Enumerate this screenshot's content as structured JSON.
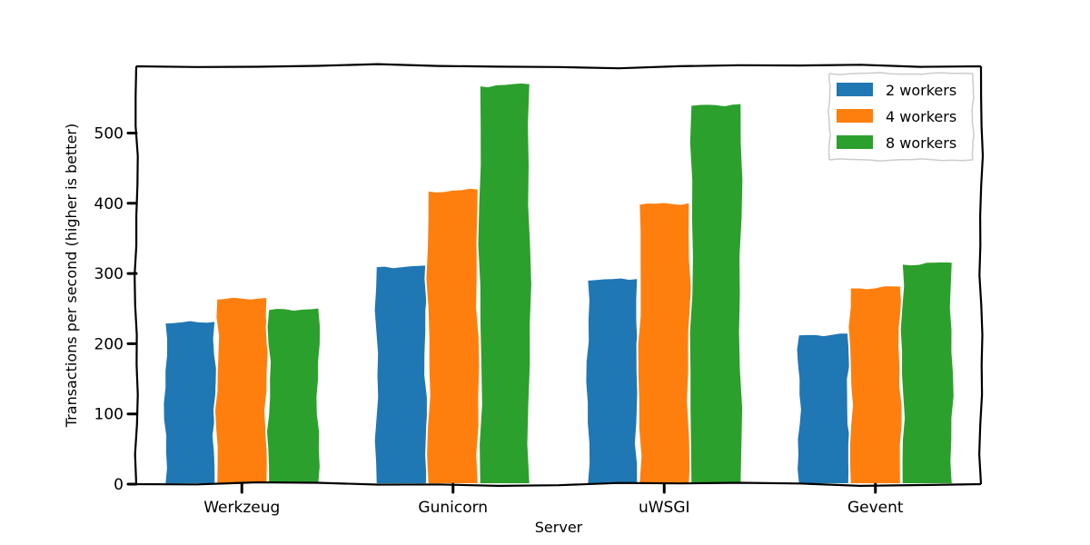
{
  "chart_data": {
    "type": "bar",
    "xlabel": "Server",
    "ylabel": "Transactions per second (higher is better)",
    "categories": [
      "Werkzeug",
      "Gunicorn",
      "uWSGI",
      "Gevent"
    ],
    "series": [
      {
        "name": "2 workers",
        "color": "#1f77b4",
        "values": [
          230,
          310,
          291,
          213
        ]
      },
      {
        "name": "4 workers",
        "color": "#ff7f0e",
        "values": [
          264,
          418,
          399,
          280
        ]
      },
      {
        "name": "8 workers",
        "color": "#2ca02c",
        "values": [
          249,
          568,
          540,
          314
        ]
      }
    ],
    "ylim": [
      0,
      595
    ],
    "yticks": [
      0,
      100,
      200,
      300,
      400,
      500
    ],
    "legend": "top-right",
    "grid": false
  }
}
